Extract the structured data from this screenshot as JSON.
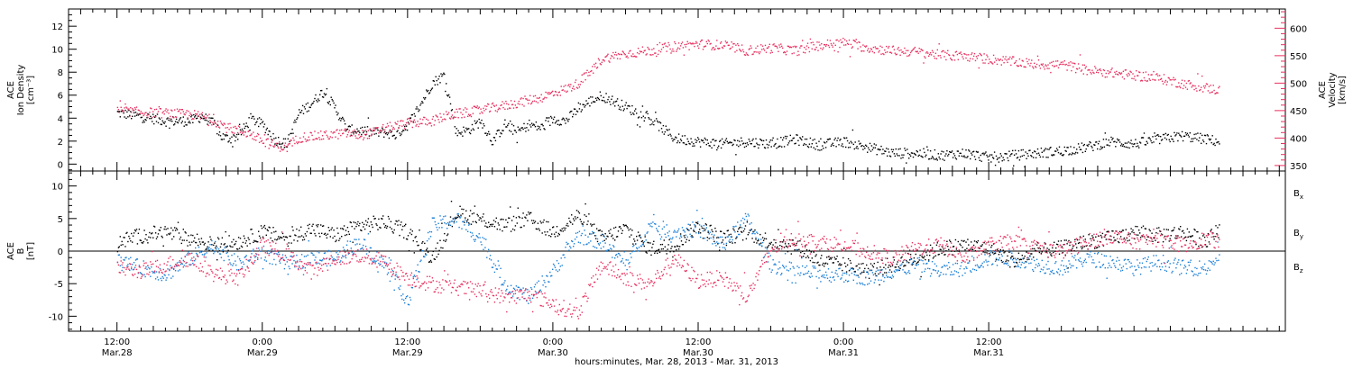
{
  "colors": {
    "black": "#000000",
    "pink": "#e8305f",
    "blue": "#1a7fd6"
  },
  "chart_data": [
    {
      "type": "scatter",
      "panel": "ace-density-velocity",
      "ylabel_left": [
        "ACE",
        "Ion Density",
        "[cm⁻³]"
      ],
      "ylabel_right": [
        "ACE",
        "Velocity",
        "[km/s]"
      ],
      "ylim_left": [
        -0.6,
        13.5
      ],
      "ylim_right": [
        340,
        635
      ],
      "yticks_left": [
        0,
        2,
        4,
        6,
        8,
        10,
        12
      ],
      "yticks_right": [
        350,
        400,
        450,
        500,
        550,
        600
      ],
      "series": [
        {
          "axis": "left",
          "color": "#000000",
          "x": [
            0,
            2,
            4,
            6,
            7,
            8,
            8.5,
            9,
            9.5,
            10,
            10.5,
            11,
            12,
            13,
            14,
            15,
            16,
            17,
            18,
            19,
            20,
            21,
            22,
            23,
            24,
            25,
            26,
            27,
            28,
            29,
            30,
            31,
            32,
            33,
            34,
            35,
            36,
            37,
            38,
            39,
            40,
            42,
            44,
            46,
            48,
            50,
            52,
            54,
            56,
            58,
            60,
            62,
            64,
            66,
            68,
            70,
            72,
            74,
            76,
            78,
            80,
            82,
            84,
            86,
            88,
            90,
            91
          ],
          "y": [
            4.5,
            4.2,
            3.8,
            3.8,
            4.2,
            3.5,
            2.5,
            2.3,
            2.3,
            2.6,
            3.2,
            4.0,
            3.5,
            2.2,
            1.8,
            4.5,
            5.3,
            6.4,
            4.9,
            3.0,
            3.0,
            2.8,
            2.8,
            2.6,
            3.5,
            5.2,
            7.1,
            7.8,
            2.8,
            3.0,
            3.8,
            2.0,
            3.5,
            2.8,
            3.5,
            3.2,
            4.0,
            3.8,
            4.8,
            5.5,
            6.0,
            5.0,
            4.0,
            2.3,
            2.0,
            1.8,
            2.0,
            1.8,
            2.2,
            1.7,
            2.0,
            1.5,
            1.0,
            1.0,
            0.8,
            1.0,
            0.6,
            0.8,
            1.0,
            1.2,
            1.5,
            2.0,
            1.8,
            2.2,
            2.5,
            2.2,
            2.0
          ]
        },
        {
          "axis": "right",
          "color": "#e8305f",
          "x": [
            0,
            2,
            4,
            6,
            7,
            8,
            8.5,
            9,
            9.5,
            10,
            10.5,
            11,
            12,
            13,
            14,
            15,
            16,
            17,
            18,
            19,
            20,
            21,
            22,
            23,
            24,
            25,
            26,
            27,
            28,
            29,
            30,
            31,
            32,
            33,
            34,
            35,
            36,
            37,
            38,
            39,
            40,
            42,
            44,
            46,
            48,
            50,
            52,
            54,
            56,
            58,
            60,
            62,
            64,
            66,
            68,
            70,
            72,
            74,
            76,
            78,
            80,
            82,
            84,
            86,
            88,
            90,
            91
          ],
          "y": [
            450,
            448,
            446,
            444,
            440,
            432,
            428,
            420,
            418,
            415,
            412,
            408,
            395,
            387,
            384,
            402,
            404,
            405,
            408,
            410,
            406,
            410,
            418,
            423,
            428,
            430,
            432,
            440,
            445,
            448,
            452,
            456,
            460,
            465,
            470,
            475,
            483,
            490,
            500,
            520,
            545,
            555,
            560,
            568,
            572,
            570,
            560,
            565,
            560,
            570,
            575,
            565,
            560,
            558,
            552,
            550,
            545,
            540,
            535,
            535,
            525,
            520,
            515,
            510,
            500,
            492,
            488
          ]
        }
      ]
    },
    {
      "type": "scatter",
      "panel": "ace-magnetic-field",
      "ylabel_left": [
        "ACE",
        "B",
        "[nT]"
      ],
      "ylim": [
        -12.3,
        12.3
      ],
      "yticks": [
        -10,
        -5,
        0,
        5,
        10
      ],
      "zero_line": true,
      "legend": {
        "placement": "right",
        "entries": [
          "Bx",
          "By",
          "Bz"
        ],
        "main": "B",
        "subs": [
          "x",
          "y",
          "z"
        ]
      },
      "series": [
        {
          "name": "Bx",
          "color": "#000000",
          "x": [
            0,
            2,
            4,
            6,
            8,
            10,
            12,
            14,
            16,
            18,
            20,
            22,
            24,
            26,
            28,
            30,
            32,
            34,
            36,
            38,
            40,
            42,
            44,
            46,
            48,
            50,
            52,
            54,
            56,
            58,
            60,
            62,
            64,
            66,
            68,
            70,
            72,
            74,
            76,
            78,
            80,
            82,
            84,
            86,
            88,
            90,
            91
          ],
          "y": [
            1.5,
            2.5,
            3.0,
            2.0,
            1.0,
            1.5,
            3.0,
            2.0,
            3.5,
            2.5,
            4.0,
            4.5,
            3.0,
            -1.0,
            6.0,
            5.0,
            4.0,
            5.0,
            3.0,
            5.5,
            2.0,
            3.5,
            0.5,
            1.0,
            4.0,
            2.0,
            3.0,
            1.5,
            1.0,
            -1.5,
            -2.0,
            -3.0,
            -2.0,
            -1.0,
            0.5,
            1.0,
            0.5,
            -1.5,
            0.0,
            0.5,
            1.5,
            2.0,
            3.0,
            2.5,
            3.0,
            1.5,
            3.5
          ]
        },
        {
          "name": "By",
          "color": "#1a7fd6",
          "x": [
            0,
            2,
            4,
            6,
            8,
            10,
            12,
            14,
            16,
            18,
            20,
            22,
            24,
            26,
            28,
            30,
            32,
            34,
            36,
            38,
            40,
            42,
            44,
            46,
            48,
            50,
            52,
            54,
            56,
            58,
            60,
            62,
            64,
            66,
            68,
            70,
            72,
            74,
            76,
            78,
            80,
            82,
            84,
            86,
            88,
            90,
            91
          ],
          "y": [
            -1.5,
            -2.5,
            -3.5,
            -1.0,
            1.0,
            -2.0,
            0.0,
            -2.0,
            -1.0,
            -1.0,
            1.5,
            -2.0,
            -7.5,
            4.0,
            5.0,
            2.0,
            -5.0,
            -7.0,
            -3.0,
            2.5,
            1.5,
            -2.0,
            4.0,
            3.0,
            3.5,
            1.0,
            5.0,
            -2.0,
            -3.0,
            -3.5,
            -3.5,
            -4.0,
            -3.0,
            -2.0,
            -3.0,
            -2.5,
            -1.0,
            -1.0,
            -2.0,
            -2.5,
            -1.0,
            -1.5,
            -2.5,
            -1.5,
            -2.5,
            -2.5,
            -0.5
          ]
        },
        {
          "name": "Bz",
          "color": "#e8305f",
          "x": [
            0,
            2,
            4,
            6,
            8,
            10,
            12,
            14,
            16,
            18,
            20,
            22,
            24,
            26,
            28,
            30,
            32,
            34,
            36,
            38,
            40,
            42,
            44,
            46,
            48,
            50,
            52,
            54,
            56,
            58,
            60,
            62,
            64,
            66,
            68,
            70,
            72,
            74,
            76,
            78,
            80,
            82,
            84,
            86,
            88,
            90,
            91
          ],
          "y": [
            -2.5,
            -3.0,
            -2.0,
            -1.0,
            -3.5,
            -4.0,
            1.0,
            -0.5,
            -3.0,
            -1.0,
            -0.5,
            -1.5,
            -4.0,
            -5.0,
            -5.5,
            -6.0,
            -7.0,
            -6.5,
            -8.0,
            -9.5,
            -2.0,
            -4.0,
            -5.0,
            -1.0,
            -4.5,
            -4.0,
            -7.0,
            0.5,
            2.0,
            1.5,
            1.0,
            0.0,
            -1.0,
            0.5,
            1.0,
            -1.0,
            1.0,
            1.5,
            0.5,
            0.0,
            1.5,
            2.5,
            1.5,
            2.0,
            1.0,
            2.0,
            1.5
          ]
        }
      ]
    }
  ],
  "xaxis": {
    "xlabel": "hours:minutes, Mar. 28, 2013 - Mar. 31, 2013",
    "xlim": [
      -4,
      96.5
    ],
    "ticks": [
      {
        "x": 0,
        "time": "12:00",
        "date": "Mar.28"
      },
      {
        "x": 12,
        "time": "0:00",
        "date": "Mar.29"
      },
      {
        "x": 24,
        "time": "12:00",
        "date": "Mar.29"
      },
      {
        "x": 36,
        "time": "0:00",
        "date": "Mar.30"
      },
      {
        "x": 48,
        "time": "12:00",
        "date": "Mar.30"
      },
      {
        "x": 60,
        "time": "0:00",
        "date": "Mar.31"
      },
      {
        "x": 72,
        "time": "12:00",
        "date": "Mar.31"
      }
    ]
  }
}
